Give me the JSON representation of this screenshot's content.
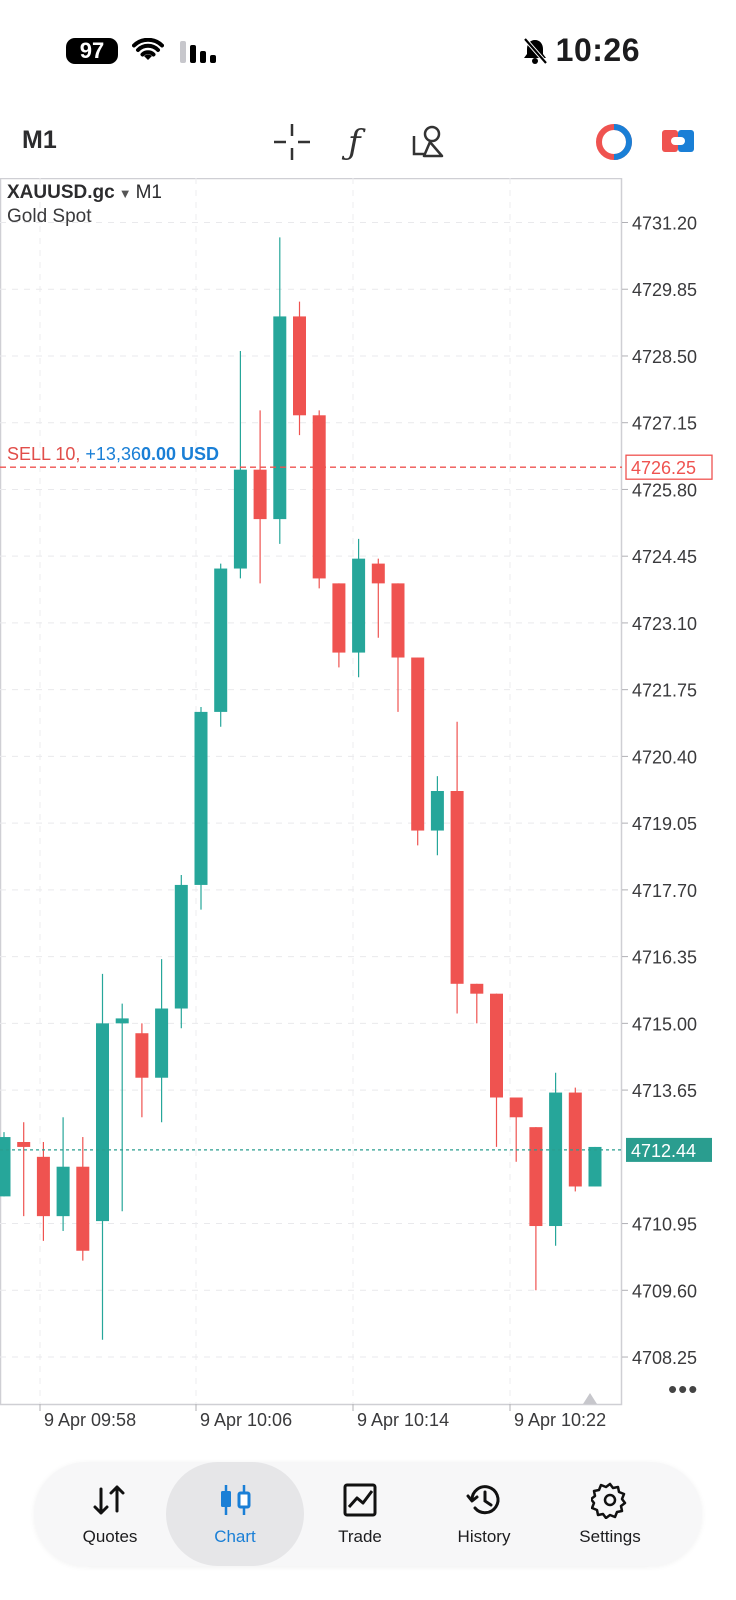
{
  "status_bar": {
    "battery": "97",
    "time": "10:26",
    "icons": [
      "wifi-icon",
      "signal-icon",
      "bell-muted-icon"
    ]
  },
  "toolbar": {
    "timeframe": "M1",
    "icons": [
      "crosshair-icon",
      "indicators-icon",
      "objects-icon",
      "account-icon",
      "trade-mode-icon"
    ]
  },
  "chart": {
    "symbol": "XAUUSD.gc",
    "timeframe": "M1",
    "description": "Gold Spot",
    "order_line": {
      "side_label": "SELL 10,",
      "pl_prefix": "+13,36",
      "pl_bold": "0.00 USD",
      "price": "4726.25"
    },
    "current_price": "4712.44",
    "price_ticks": [
      "4731.20",
      "4729.85",
      "4728.50",
      "4727.15",
      "4725.80",
      "4724.45",
      "4723.10",
      "4721.75",
      "4720.40",
      "4719.05",
      "4717.70",
      "4716.35",
      "4715.00",
      "4713.65",
      "4710.95",
      "4709.60",
      "4708.25"
    ],
    "time_ticks": [
      "9 Apr 09:58",
      "9 Apr 10:06",
      "9 Apr 10:14",
      "9 Apr 10:22"
    ],
    "colors": {
      "up": "#26a69a",
      "down": "#ef5350",
      "order": "#ef5350",
      "current": "#2a9d8f"
    },
    "more_label": "•••"
  },
  "chart_data": {
    "type": "candlestick",
    "symbol": "XAUUSD.gc",
    "timeframe": "M1",
    "ylim": [
      4707.3,
      4732.1
    ],
    "price_ticks": [
      4731.2,
      4729.85,
      4728.5,
      4727.15,
      4725.8,
      4724.45,
      4723.1,
      4721.75,
      4720.4,
      4719.05,
      4717.7,
      4716.35,
      4715.0,
      4713.65,
      4710.95,
      4709.6,
      4708.25
    ],
    "time_ticks": [
      "9 Apr 09:58",
      "9 Apr 10:06",
      "9 Apr 10:14",
      "9 Apr 10:22"
    ],
    "order_price": 4726.25,
    "current_price": 4712.44,
    "candles": [
      {
        "o": 4711.5,
        "h": 4712.8,
        "l": 4711.5,
        "c": 4712.7
      },
      {
        "o": 4712.6,
        "h": 4713.0,
        "l": 4711.1,
        "c": 4712.5
      },
      {
        "o": 4712.3,
        "h": 4712.6,
        "l": 4710.6,
        "c": 4711.1
      },
      {
        "o": 4711.1,
        "h": 4713.1,
        "l": 4710.8,
        "c": 4712.1
      },
      {
        "o": 4712.1,
        "h": 4712.7,
        "l": 4710.2,
        "c": 4710.4
      },
      {
        "o": 4711.0,
        "h": 4716.0,
        "l": 4708.6,
        "c": 4715.0
      },
      {
        "o": 4715.0,
        "h": 4715.4,
        "l": 4711.2,
        "c": 4715.1
      },
      {
        "o": 4714.8,
        "h": 4715.0,
        "l": 4713.1,
        "c": 4713.9
      },
      {
        "o": 4713.9,
        "h": 4716.3,
        "l": 4713.0,
        "c": 4715.3
      },
      {
        "o": 4715.3,
        "h": 4718.0,
        "l": 4714.9,
        "c": 4717.8
      },
      {
        "o": 4717.8,
        "h": 4721.4,
        "l": 4717.3,
        "c": 4721.3
      },
      {
        "o": 4721.3,
        "h": 4724.3,
        "l": 4721.0,
        "c": 4724.2
      },
      {
        "o": 4724.2,
        "h": 4728.6,
        "l": 4724.0,
        "c": 4726.2
      },
      {
        "o": 4726.2,
        "h": 4727.4,
        "l": 4723.9,
        "c": 4725.2
      },
      {
        "o": 4725.2,
        "h": 4730.9,
        "l": 4724.7,
        "c": 4729.3
      },
      {
        "o": 4729.3,
        "h": 4729.6,
        "l": 4726.9,
        "c": 4727.3
      },
      {
        "o": 4727.3,
        "h": 4727.4,
        "l": 4723.8,
        "c": 4724.0
      },
      {
        "o": 4723.9,
        "h": 4723.9,
        "l": 4722.2,
        "c": 4722.5
      },
      {
        "o": 4722.5,
        "h": 4724.8,
        "l": 4722.0,
        "c": 4724.4
      },
      {
        "o": 4724.3,
        "h": 4724.4,
        "l": 4722.8,
        "c": 4723.9
      },
      {
        "o": 4723.9,
        "h": 4723.9,
        "l": 4721.3,
        "c": 4722.4
      },
      {
        "o": 4722.4,
        "h": 4722.4,
        "l": 4718.6,
        "c": 4718.9
      },
      {
        "o": 4718.9,
        "h": 4720.0,
        "l": 4718.4,
        "c": 4719.7
      },
      {
        "o": 4719.7,
        "h": 4721.1,
        "l": 4715.2,
        "c": 4715.8
      },
      {
        "o": 4715.8,
        "h": 4715.8,
        "l": 4715.0,
        "c": 4715.6
      },
      {
        "o": 4715.6,
        "h": 4715.6,
        "l": 4712.5,
        "c": 4713.5
      },
      {
        "o": 4713.5,
        "h": 4713.5,
        "l": 4712.2,
        "c": 4713.1
      },
      {
        "o": 4712.9,
        "h": 4712.9,
        "l": 4709.6,
        "c": 4710.9
      },
      {
        "o": 4710.9,
        "h": 4714.0,
        "l": 4710.5,
        "c": 4713.6
      },
      {
        "o": 4713.6,
        "h": 4713.7,
        "l": 4711.6,
        "c": 4711.7
      },
      {
        "o": 4711.7,
        "h": 4712.5,
        "l": 4711.7,
        "c": 4712.5
      }
    ]
  },
  "nav": {
    "items": [
      {
        "label": "Quotes",
        "icon": "quotes-icon",
        "active": false
      },
      {
        "label": "Chart",
        "icon": "chart-icon",
        "active": true
      },
      {
        "label": "Trade",
        "icon": "trade-icon",
        "active": false
      },
      {
        "label": "History",
        "icon": "history-icon",
        "active": false
      },
      {
        "label": "Settings",
        "icon": "settings-icon",
        "active": false
      }
    ],
    "active_color": "#1a7fd6"
  }
}
